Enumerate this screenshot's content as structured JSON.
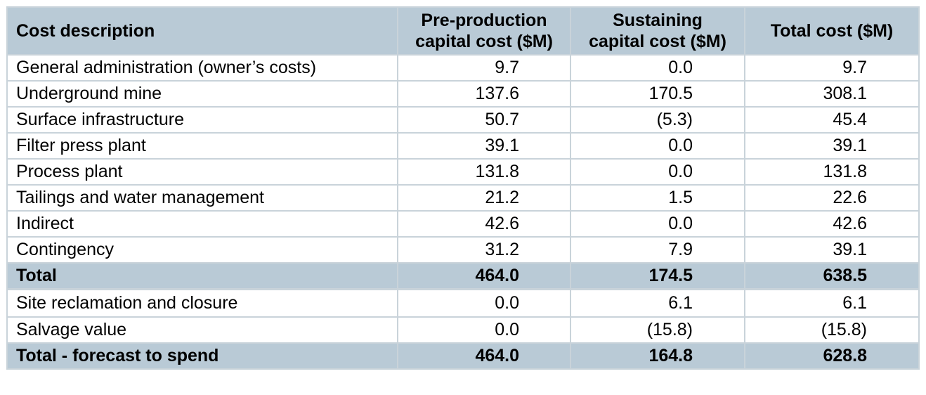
{
  "header": {
    "cost_description": "Cost description",
    "pre_production_line1": "Pre-production",
    "pre_production_line2": "capital cost ($M)",
    "sustaining_line1": "Sustaining",
    "sustaining_line2": "capital cost ($M)",
    "total_cost": "Total cost ($M)"
  },
  "rows": [
    {
      "description": "General administration (owner’s costs)",
      "pre_production": "9.7",
      "sustaining": "0.0",
      "total": "9.7"
    },
    {
      "description": "Underground mine",
      "pre_production": "137.6",
      "sustaining": "170.5",
      "total": "308.1"
    },
    {
      "description": "Surface infrastructure",
      "pre_production": "50.7",
      "sustaining": "(5.3)",
      "total": "45.4"
    },
    {
      "description": "Filter press plant",
      "pre_production": "39.1",
      "sustaining": "0.0",
      "total": "39.1"
    },
    {
      "description": "Process plant",
      "pre_production": "131.8",
      "sustaining": "0.0",
      "total": "131.8"
    },
    {
      "description": "Tailings and water management",
      "pre_production": "21.2",
      "sustaining": "1.5",
      "total": "22.6"
    },
    {
      "description": "Indirect",
      "pre_production": "42.6",
      "sustaining": "0.0",
      "total": "42.6"
    },
    {
      "description": "Contingency",
      "pre_production": "31.2",
      "sustaining": "7.9",
      "total": "39.1"
    }
  ],
  "total": {
    "description": "Total",
    "pre_production": "464.0",
    "sustaining": "174.5",
    "total": "638.5"
  },
  "extra_rows": [
    {
      "description": "Site reclamation and closure",
      "pre_production": "0.0",
      "sustaining": "6.1",
      "total": "6.1"
    },
    {
      "description": "Salvage value",
      "pre_production": "0.0",
      "sustaining": "(15.8)",
      "total": "(15.8)"
    }
  ],
  "final_total": {
    "description": "Total - forecast to spend",
    "pre_production": "464.0",
    "sustaining": "164.8",
    "total": "628.8"
  },
  "colors": {
    "header_fill": "#b9cad6",
    "total_fill": "#b9cad6",
    "grid_line": "#c9d3da"
  }
}
